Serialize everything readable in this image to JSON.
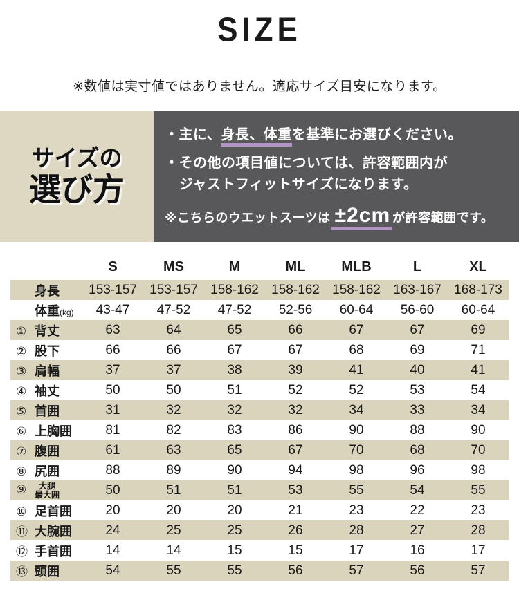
{
  "page": {
    "title": "SIZE",
    "note": "※数値は実寸値ではありません。適応サイズ目安になります。"
  },
  "how_to_choose": {
    "heading_line1": "サイズの",
    "heading_line2": "選び方",
    "bullet1_prefix": "・主に、",
    "bullet1_highlight": "身長、体重",
    "bullet1_suffix": "を基準にお選びください。",
    "bullet2_line1": "・その他の項目値については、許容範囲内が",
    "bullet2_line2": "ジャストフィットサイズになります。",
    "tolerance_prefix": "※こちらのウエットスーツは",
    "tolerance_value": "±2cm",
    "tolerance_suffix": "が許容範囲です。"
  },
  "colors": {
    "beige_box": "#ded8c3",
    "beige_row": "#dbd4bc",
    "dark_box": "#58585a",
    "accent_underline": "#b294c2",
    "text": "#1a1a1a"
  },
  "chart_data": {
    "type": "table",
    "title": "SIZE",
    "columns": [
      "S",
      "MS",
      "M",
      "ML",
      "MLB",
      "L",
      "XL"
    ],
    "rows": [
      {
        "num": "",
        "label": "身長",
        "suffix": "",
        "label2": "",
        "values": [
          "153-157",
          "153-157",
          "158-162",
          "158-162",
          "158-162",
          "163-167",
          "168-173"
        ]
      },
      {
        "num": "",
        "label": "体重",
        "suffix": "(kg)",
        "label2": "",
        "values": [
          "43-47",
          "47-52",
          "47-52",
          "52-56",
          "60-64",
          "56-60",
          "60-64"
        ]
      },
      {
        "num": "①",
        "label": "背丈",
        "suffix": "",
        "label2": "",
        "values": [
          "63",
          "64",
          "65",
          "66",
          "67",
          "67",
          "69"
        ]
      },
      {
        "num": "②",
        "label": "股下",
        "suffix": "",
        "label2": "",
        "values": [
          "66",
          "66",
          "67",
          "67",
          "68",
          "69",
          "71"
        ]
      },
      {
        "num": "③",
        "label": "肩幅",
        "suffix": "",
        "label2": "",
        "values": [
          "37",
          "37",
          "38",
          "39",
          "41",
          "40",
          "41"
        ]
      },
      {
        "num": "④",
        "label": "袖丈",
        "suffix": "",
        "label2": "",
        "values": [
          "50",
          "50",
          "51",
          "52",
          "52",
          "53",
          "54"
        ]
      },
      {
        "num": "⑤",
        "label": "首囲",
        "suffix": "",
        "label2": "",
        "values": [
          "31",
          "32",
          "32",
          "32",
          "34",
          "33",
          "34"
        ]
      },
      {
        "num": "⑥",
        "label": "上胸囲",
        "suffix": "",
        "label2": "",
        "values": [
          "81",
          "82",
          "83",
          "86",
          "90",
          "88",
          "90"
        ]
      },
      {
        "num": "⑦",
        "label": "腹囲",
        "suffix": "",
        "label2": "",
        "values": [
          "61",
          "63",
          "65",
          "67",
          "70",
          "68",
          "70"
        ]
      },
      {
        "num": "⑧",
        "label": "尻囲",
        "suffix": "",
        "label2": "",
        "values": [
          "88",
          "89",
          "90",
          "94",
          "98",
          "96",
          "98"
        ]
      },
      {
        "num": "⑨",
        "label": "大腿",
        "suffix": "",
        "label2": "最大囲",
        "values": [
          "50",
          "51",
          "51",
          "53",
          "55",
          "54",
          "55"
        ]
      },
      {
        "num": "⑩",
        "label": "足首囲",
        "suffix": "",
        "label2": "",
        "values": [
          "20",
          "20",
          "20",
          "21",
          "23",
          "22",
          "23"
        ]
      },
      {
        "num": "⑪",
        "label": "大腕囲",
        "suffix": "",
        "label2": "",
        "values": [
          "24",
          "25",
          "25",
          "26",
          "28",
          "27",
          "28"
        ]
      },
      {
        "num": "⑫",
        "label": "手首囲",
        "suffix": "",
        "label2": "",
        "values": [
          "14",
          "14",
          "15",
          "15",
          "17",
          "16",
          "17"
        ]
      },
      {
        "num": "⑬",
        "label": "頭囲",
        "suffix": "",
        "label2": "",
        "values": [
          "54",
          "55",
          "55",
          "56",
          "57",
          "56",
          "57"
        ]
      }
    ]
  }
}
